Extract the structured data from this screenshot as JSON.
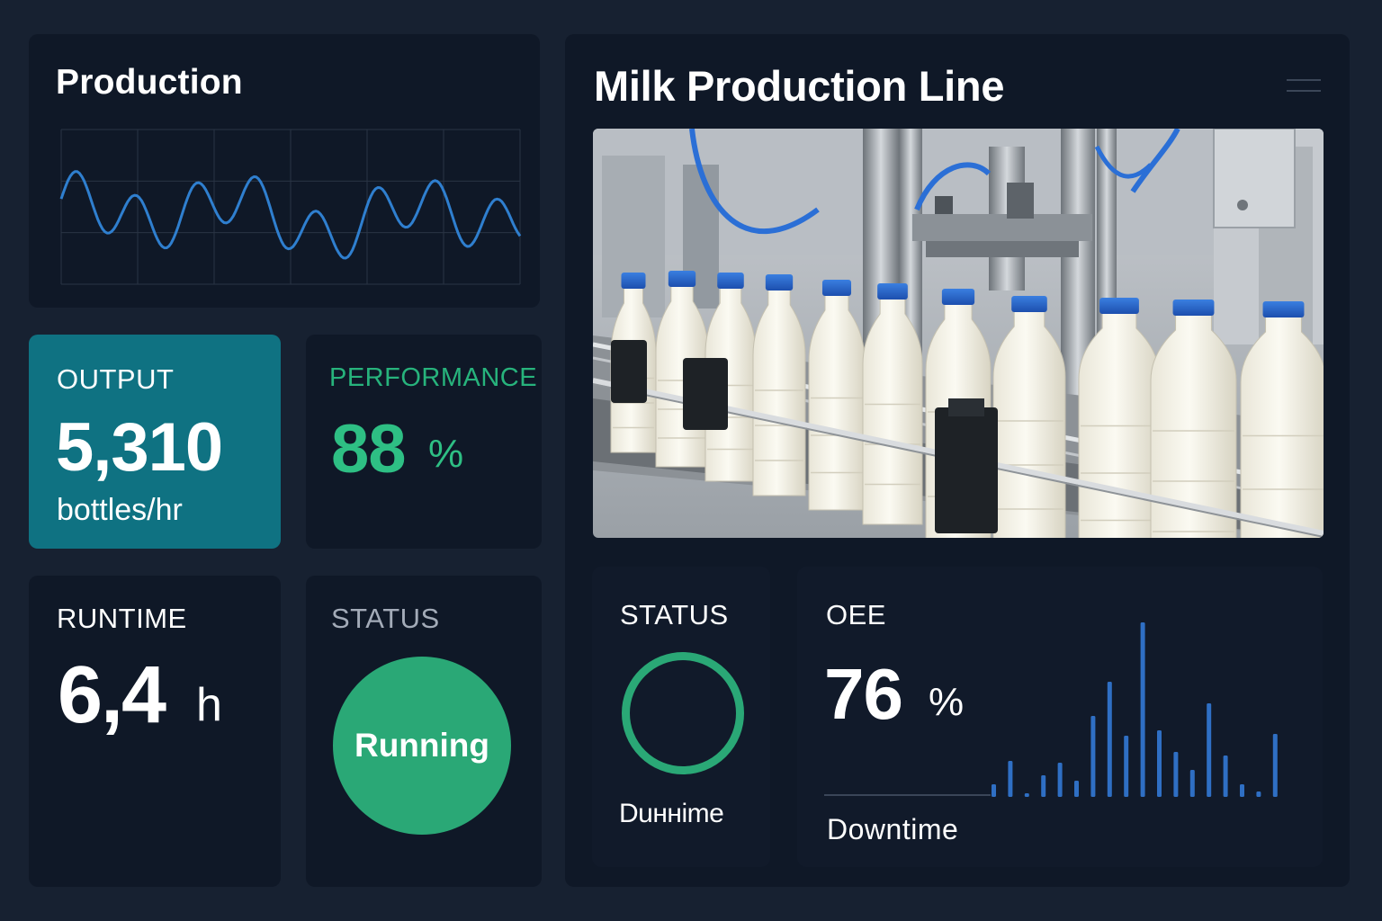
{
  "production": {
    "title": "Production",
    "line_color": "#2f7fcf"
  },
  "line_panel": {
    "title": "Milk Production Line",
    "photo_description_icon": "milk-bottling-photo"
  },
  "output": {
    "label": "OUTPUT",
    "value": "5,310",
    "unit": "bottles/hr"
  },
  "performance": {
    "label": "PERFORMANCE",
    "value": "88",
    "unit": "%"
  },
  "runtime": {
    "label": "RUNTIME",
    "value": "6,4",
    "unit": "h"
  },
  "status_left": {
    "label": "STATUS",
    "state": "Running"
  },
  "status_right": {
    "label": "STATUS",
    "sub": "Duннime"
  },
  "oee": {
    "label": "OEE",
    "value": "76",
    "unit": "%",
    "sub": "Downtime"
  },
  "colors": {
    "background": "#172131",
    "card": "#0f1827",
    "output_accent": "#0f7282",
    "green": "#2aa876",
    "blue": "#2f6fc4"
  }
}
